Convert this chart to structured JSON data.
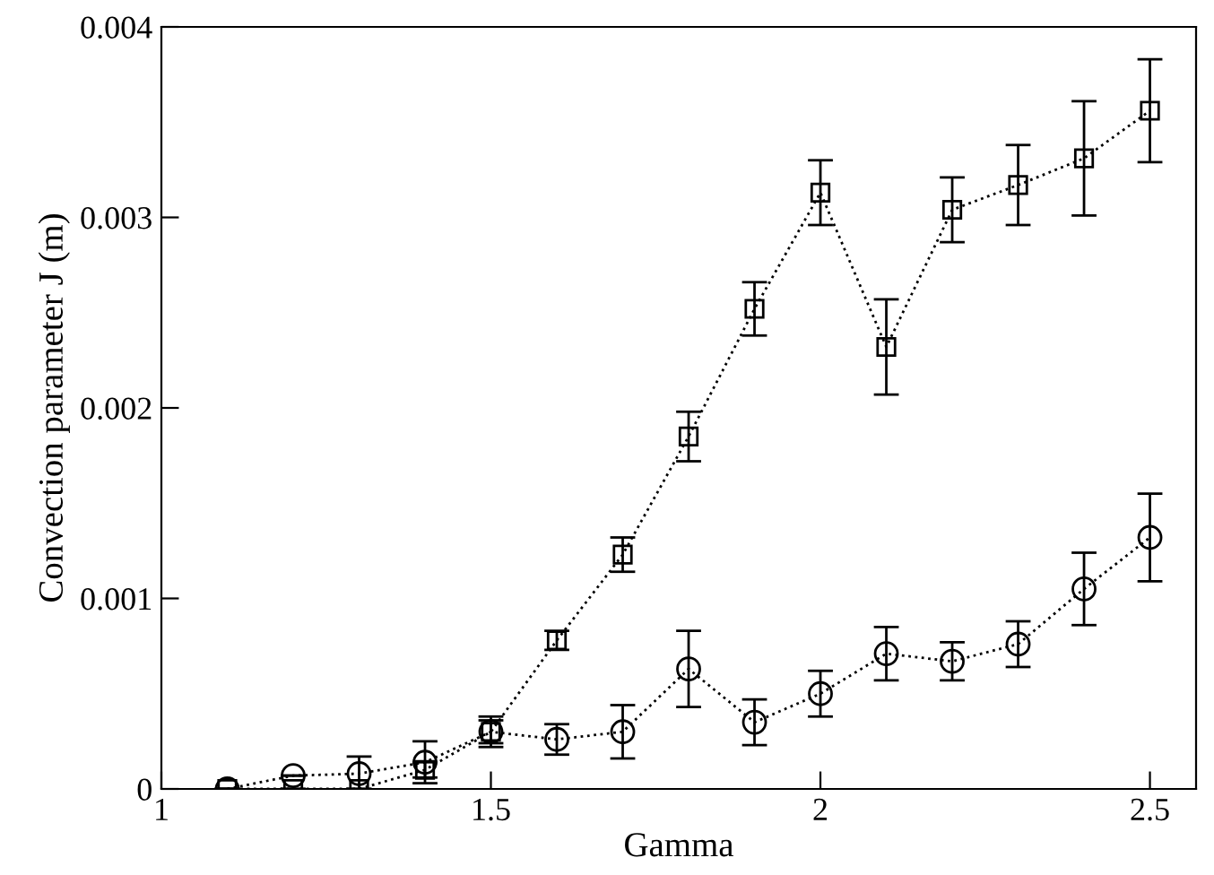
{
  "chart_data": {
    "type": "line",
    "xlabel": "Gamma",
    "ylabel": "Convection parameter J (m)",
    "xlim": [
      1,
      2.57
    ],
    "ylim": [
      0,
      0.004
    ],
    "xticks": [
      1,
      1.5,
      2,
      2.5
    ],
    "yticks": [
      0,
      0.001,
      0.002,
      0.003,
      0.004
    ],
    "grid": false,
    "line_style": "dotted",
    "series": [
      {
        "color": "#000000",
        "marker": "square",
        "x": [
          1.1,
          1.2,
          1.3,
          1.4,
          1.5,
          1.6,
          1.7,
          1.8,
          1.9,
          2.0,
          2.1,
          2.2,
          2.3,
          2.4,
          2.5
        ],
        "values": [
          0,
          0,
          0,
          0.0001,
          0.0003,
          0.00078,
          0.00123,
          0.00185,
          0.00252,
          0.00313,
          0.00232,
          0.00304,
          0.00317,
          0.00331,
          0.00356
        ],
        "errors": [
          null,
          null,
          null,
          4e-05,
          8e-05,
          5e-05,
          9e-05,
          0.00013,
          0.00014,
          0.00017,
          0.00025,
          0.00017,
          0.00021,
          0.0003,
          0.00027
        ]
      },
      {
        "color": "#000000",
        "marker": "circle",
        "x": [
          1.1,
          1.2,
          1.3,
          1.4,
          1.5,
          1.6,
          1.7,
          1.8,
          1.9,
          2.0,
          2.1,
          2.2,
          2.3,
          2.4,
          2.5
        ],
        "values": [
          0,
          7e-05,
          8e-05,
          0.00014,
          0.0003,
          0.00026,
          0.0003,
          0.00063,
          0.00035,
          0.0005,
          0.00071,
          0.00067,
          0.00076,
          0.00105,
          0.00132
        ],
        "errors": [
          null,
          null,
          9e-05,
          0.00011,
          6e-05,
          8e-05,
          0.00014,
          0.0002,
          0.00012,
          0.00012,
          0.00014,
          0.0001,
          0.00012,
          0.00019,
          0.00023
        ]
      }
    ]
  }
}
